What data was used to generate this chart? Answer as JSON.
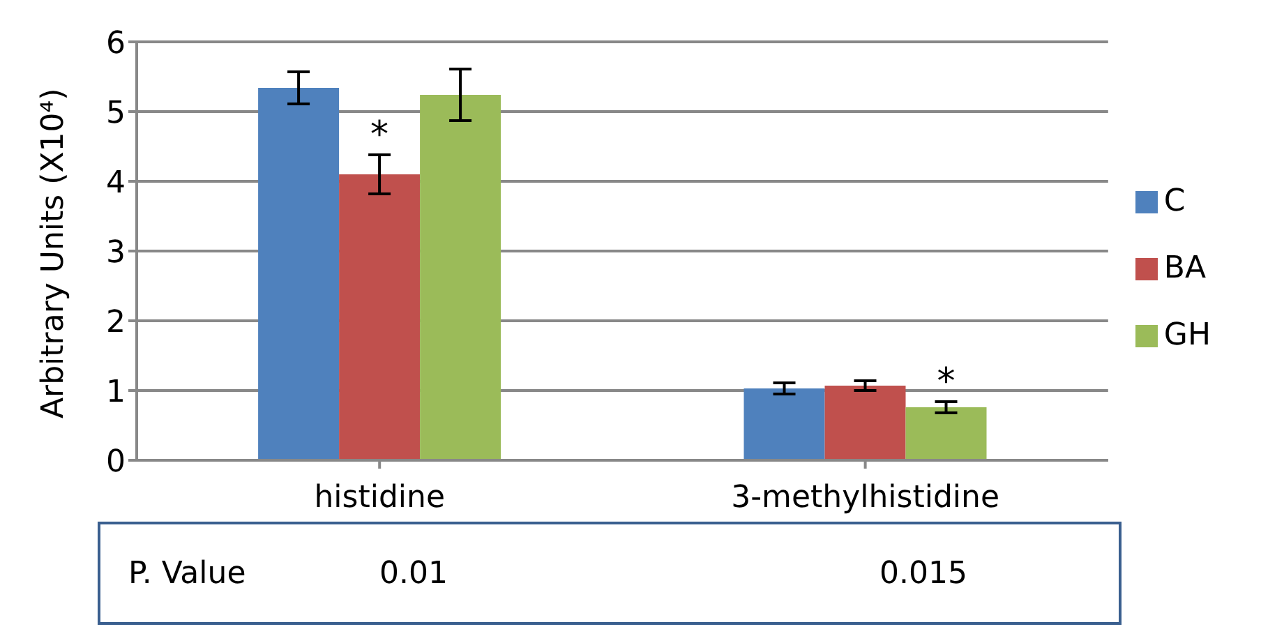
{
  "chart_data": {
    "type": "bar",
    "ylabel": "Arbitrary Units (X10⁴)",
    "categories": [
      "histidine",
      "3-methylhistidine"
    ],
    "series": [
      {
        "name": "C",
        "color": "#4f81bd",
        "values": [
          5.34,
          1.03
        ],
        "errors": [
          0.23,
          0.08
        ]
      },
      {
        "name": "BA",
        "color": "#c0504d",
        "values": [
          4.1,
          1.07
        ],
        "errors": [
          0.28,
          0.07
        ]
      },
      {
        "name": "GH",
        "color": "#9bbb59",
        "values": [
          5.24,
          0.76
        ],
        "errors": [
          0.37,
          0.08
        ]
      }
    ],
    "ylim": [
      0,
      6
    ],
    "yticks": [
      0,
      1,
      2,
      3,
      4,
      5,
      6
    ],
    "grid": "y",
    "legend": "right",
    "annotations": [
      "*",
      "*",
      "P. Value",
      "0.01",
      "0.015"
    ]
  }
}
